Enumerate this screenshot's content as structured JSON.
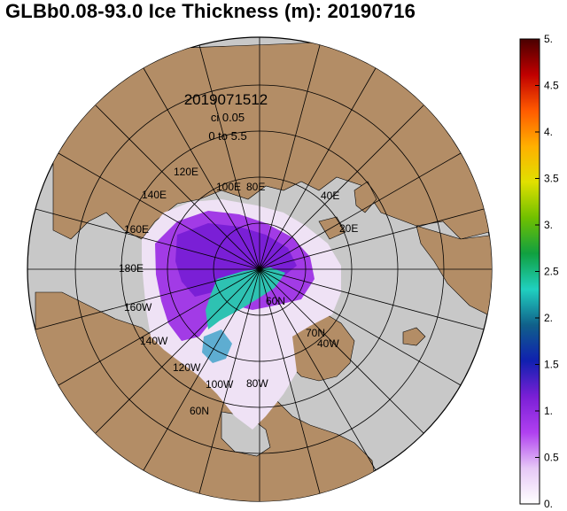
{
  "title": "GLBb0.08-93.0 Ice Thickness (m): 20190716",
  "map": {
    "stamp": "2019071512",
    "contour_interval": "ci 0.05",
    "range": "0 to 5.5",
    "longitude_labels": [
      "120E",
      "140E",
      "100E",
      "80E",
      "40E",
      "20E",
      "160E",
      "180E",
      "160W",
      "140W",
      "120W",
      "100W",
      "80W",
      "60N",
      "70N",
      "40W",
      "60N"
    ],
    "colors": {
      "land": "#b38d66",
      "ocean": "#c8c8c8",
      "ice_low": "#efe2f5",
      "ice_mid": "#a23be6",
      "ice_high": "#7a1fd6",
      "ice_thick": "#2ec2b2"
    }
  },
  "colorbar": {
    "ticks": [
      "5.",
      "4.5",
      "4.",
      "3.5",
      "3.",
      "2.5",
      "2.",
      "1.5",
      "1.",
      "0.5",
      "0."
    ],
    "stops": [
      "#4a0000",
      "#c00000",
      "#ff5a00",
      "#ffb000",
      "#e0e000",
      "#70c000",
      "#10a040",
      "#20d0c0",
      "#10608a",
      "#1020b0",
      "#7a1fd6",
      "#b040f0",
      "#e6c8f6",
      "#ffffff"
    ]
  }
}
